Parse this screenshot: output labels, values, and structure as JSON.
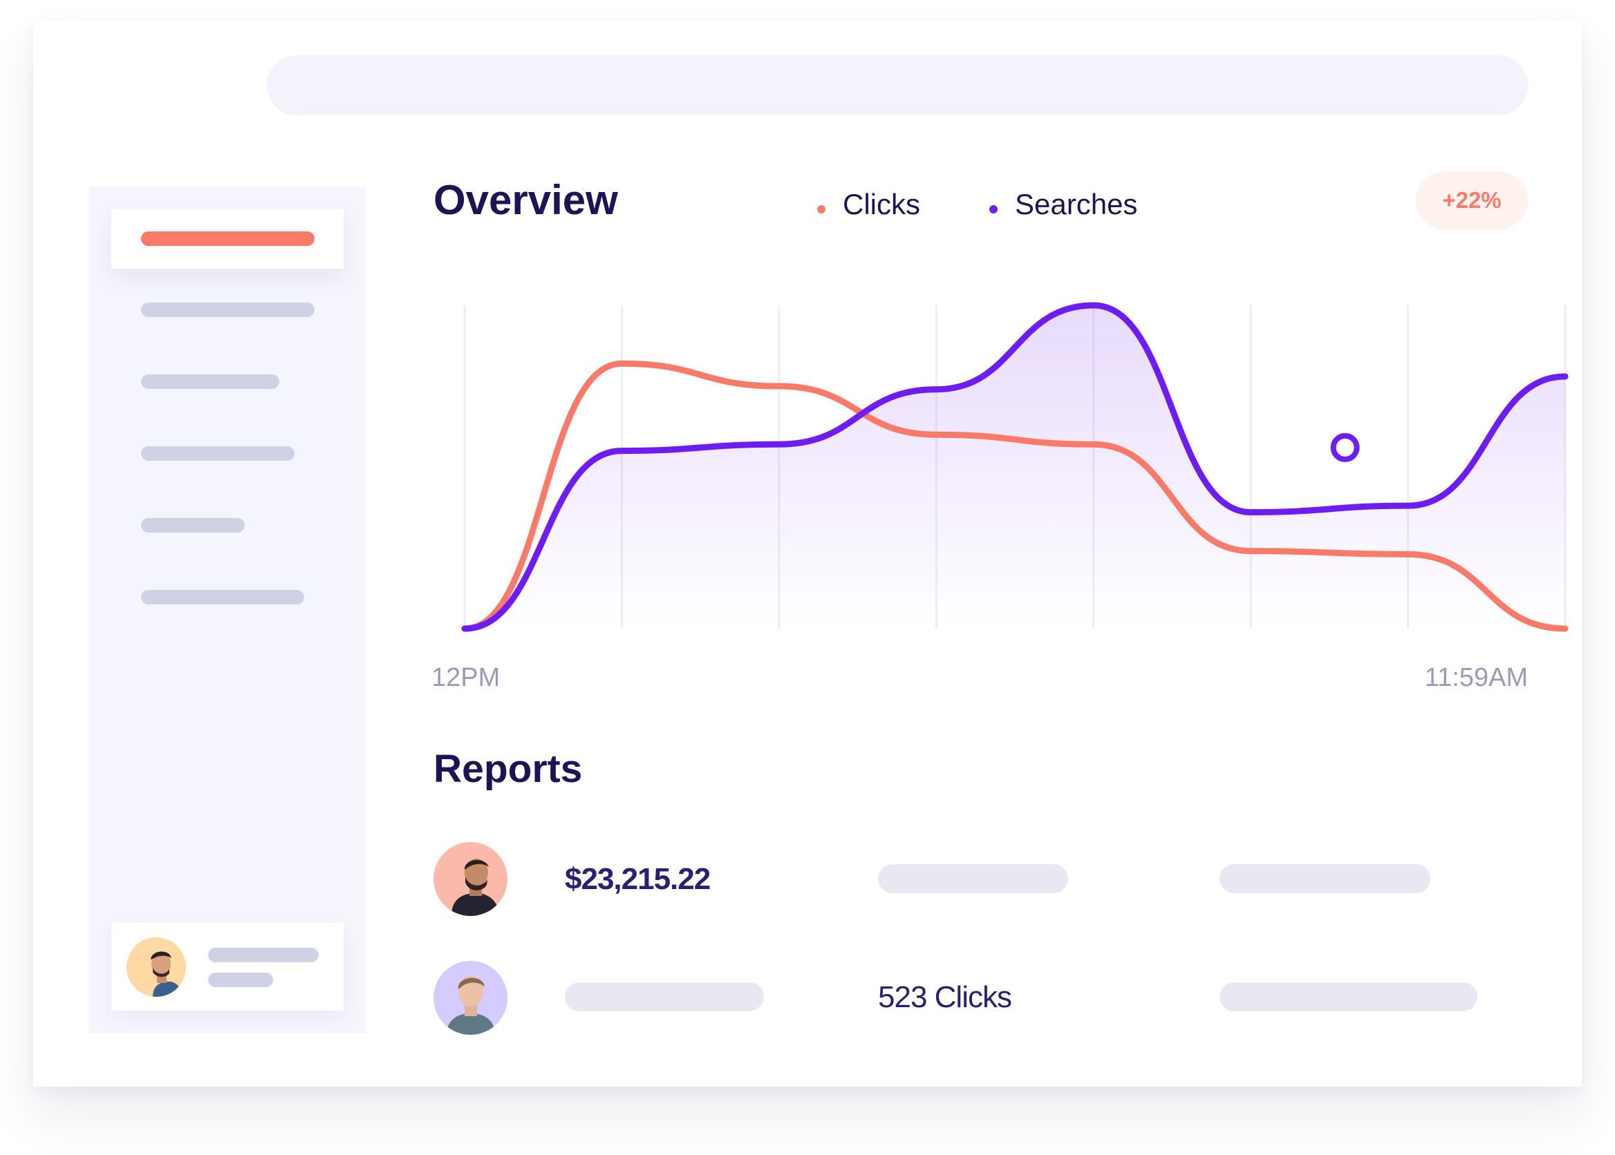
{
  "window_controls": {
    "dots": [
      {
        "name": "window-dot-cyan",
        "color": "#a3f4fb"
      },
      {
        "name": "window-dot-coral",
        "color": "#ffc3b8"
      },
      {
        "name": "window-dot-yellow",
        "color": "#ffdca6"
      }
    ]
  },
  "colors": {
    "clicks": "#f97a68",
    "searches": "#6e1cf0",
    "heading": "#1c1454",
    "sidebar_bar": "#cfd1e5"
  },
  "overview": {
    "title": "Overview",
    "legend": [
      {
        "label": "Clicks",
        "color": "#f97a68"
      },
      {
        "label": "Searches",
        "color": "#6e1cf0"
      }
    ],
    "badge": "+22%"
  },
  "chart_data": {
    "type": "line",
    "x": [
      "12PM",
      "",
      "",
      "",
      "",
      "",
      "",
      "11:59AM"
    ],
    "x_start_label": "12PM",
    "x_end_label": "11:59AM",
    "series": [
      {
        "name": "Clicks",
        "color": "#f97a68",
        "values": [
          0,
          82,
          75,
          60,
          57,
          24,
          23,
          0
        ]
      },
      {
        "name": "Searches",
        "color": "#6e1cf0",
        "values": [
          0,
          55,
          57,
          74,
          100,
          36,
          38,
          78
        ]
      }
    ],
    "marker": {
      "series": "Searches",
      "position": 5.6,
      "value": 56
    },
    "grid": "vertical",
    "ylim": [
      0,
      100
    ]
  },
  "reports": {
    "title": "Reports",
    "rows": [
      {
        "avatar_bg": "#fbb9ac",
        "value": "$23,215.22"
      },
      {
        "avatar_bg": "#d6cbff",
        "value": "523 Clicks"
      }
    ]
  },
  "sidebar": {
    "active_color": "#f97a68",
    "item_count": 6
  }
}
